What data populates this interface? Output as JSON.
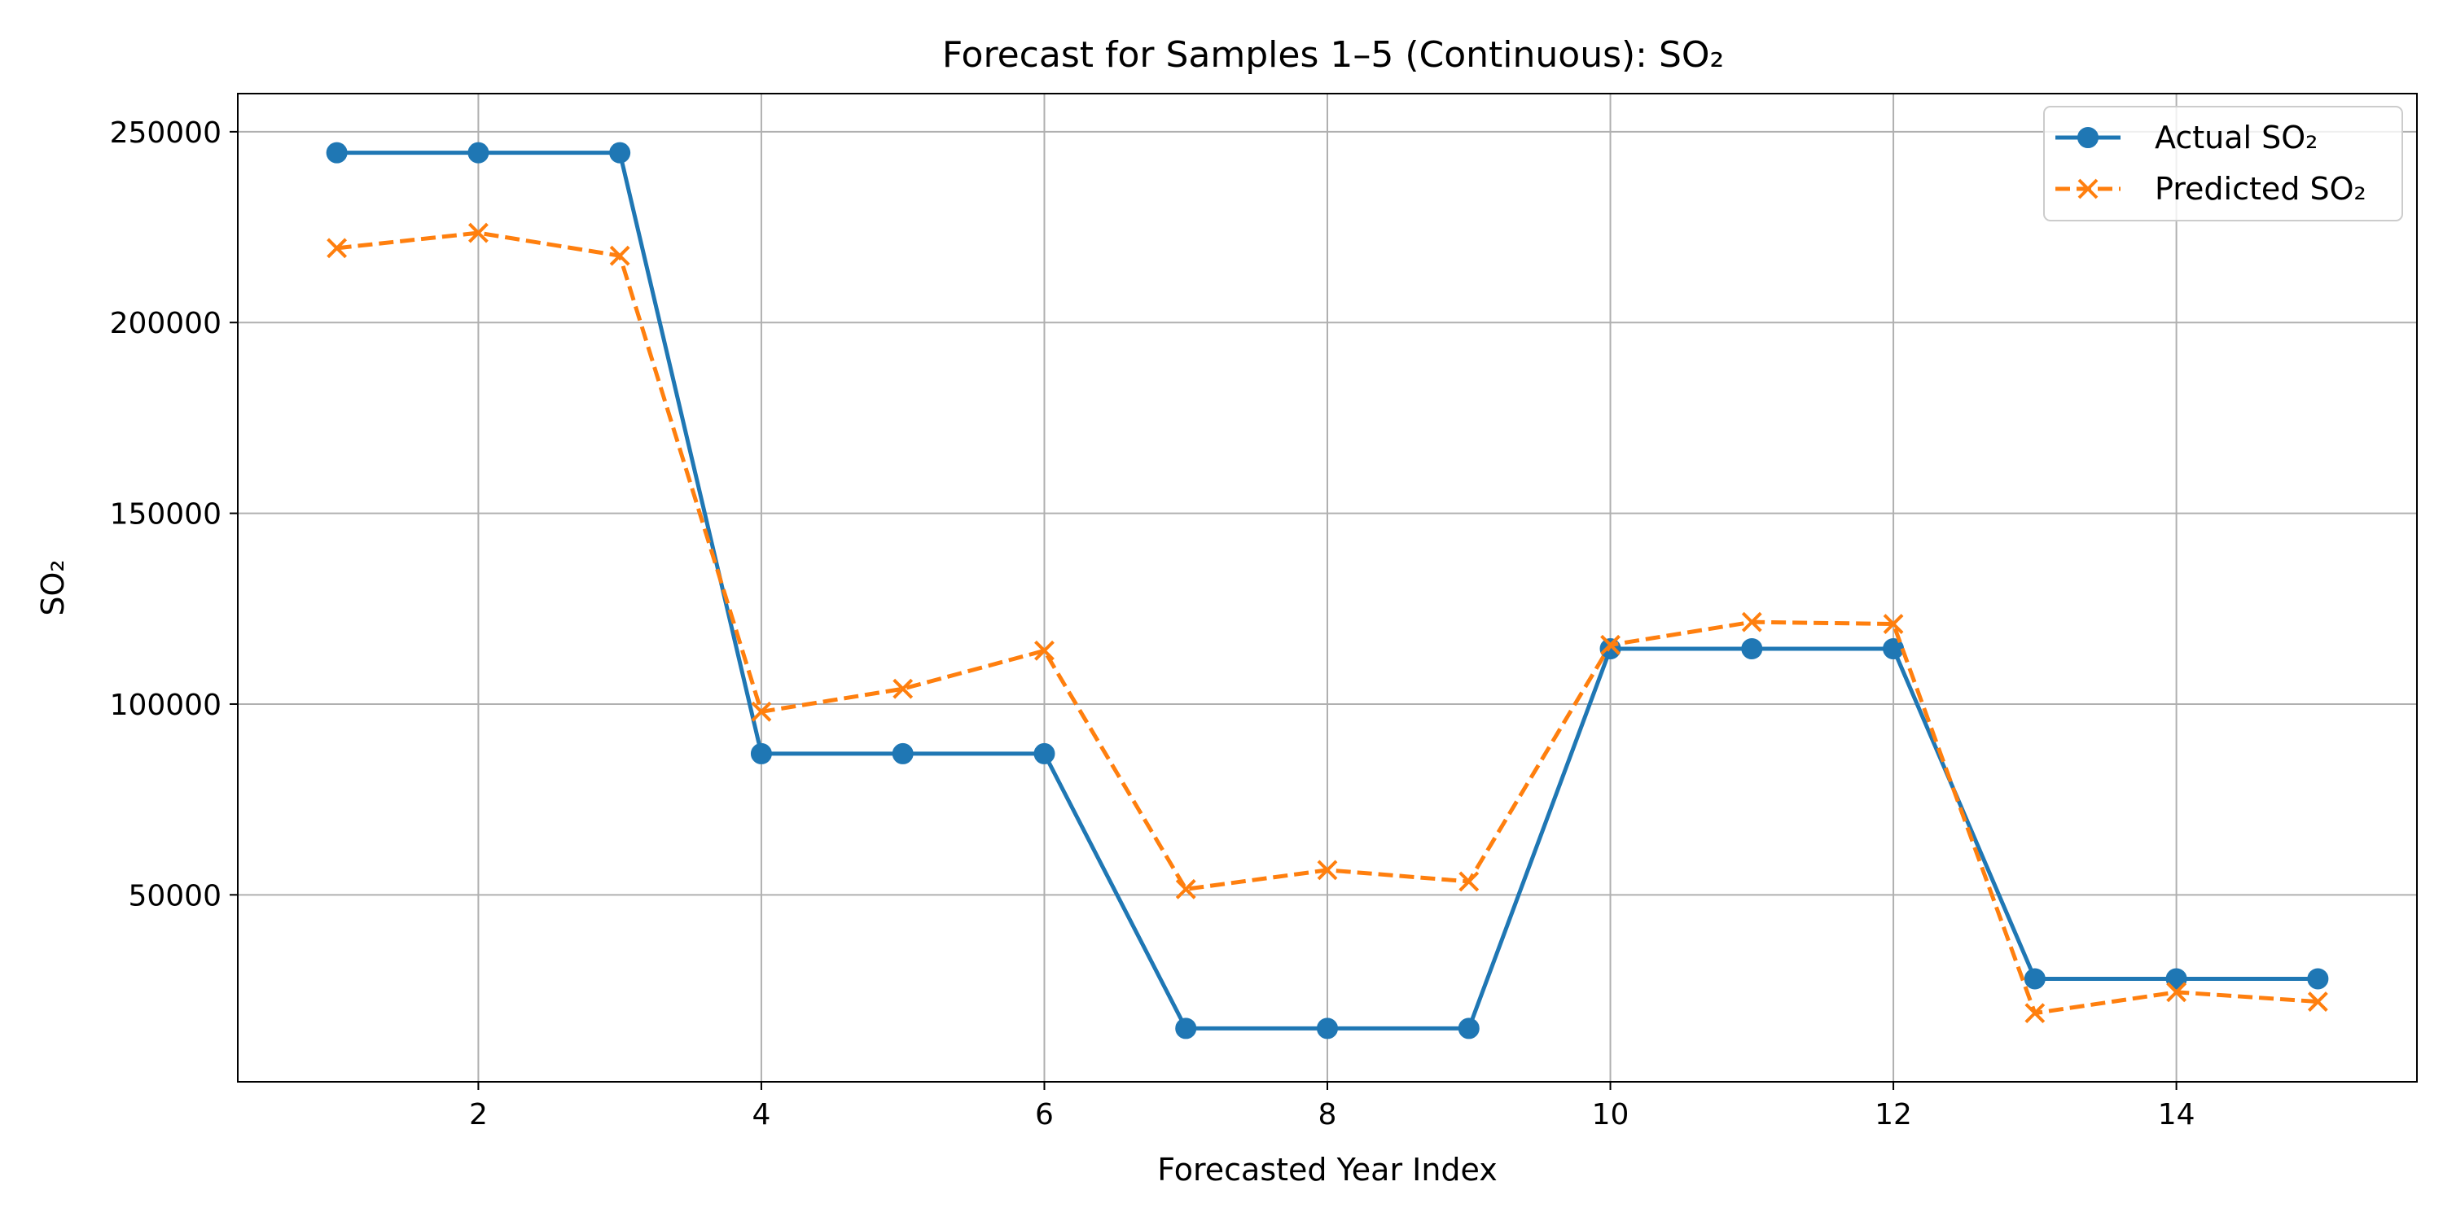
{
  "chart_data": {
    "type": "line",
    "title": "Forecast for Samples 1–5 (Continuous): SO₂",
    "xlabel": "Forecasted Year Index",
    "ylabel": "SO₂",
    "x": [
      1,
      2,
      3,
      4,
      5,
      6,
      7,
      8,
      9,
      10,
      11,
      12,
      13,
      14,
      15
    ],
    "xlim": [
      0.3,
      15.7
    ],
    "ylim": [
      1000,
      260000
    ],
    "xticks": [
      2,
      4,
      6,
      8,
      10,
      12,
      14
    ],
    "yticks": [
      50000,
      100000,
      150000,
      200000,
      250000
    ],
    "grid": true,
    "legend_position": "top-right",
    "series": [
      {
        "name": "Actual SO₂",
        "color": "#1f77b4",
        "line_style": "solid",
        "marker": "circle",
        "values": [
          244500,
          244500,
          244500,
          87000,
          87000,
          87000,
          15000,
          15000,
          15000,
          114500,
          114500,
          114500,
          28000,
          28000,
          28000
        ]
      },
      {
        "name": "Predicted SO₂",
        "color": "#ff7f0e",
        "line_style": "dashed",
        "marker": "x",
        "values": [
          219500,
          223500,
          217500,
          98000,
          104000,
          114000,
          51500,
          56500,
          53500,
          115500,
          121500,
          121000,
          19000,
          24500,
          22000
        ]
      }
    ]
  }
}
